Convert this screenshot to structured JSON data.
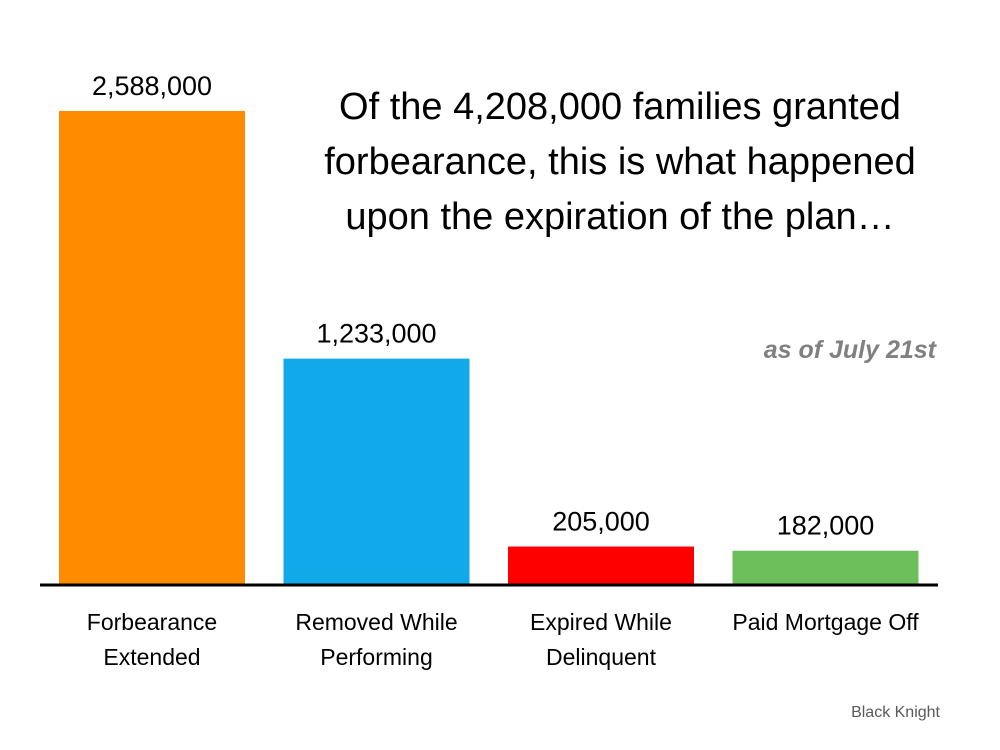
{
  "chart_data": {
    "type": "bar",
    "title_lines": [
      "Of the 4,208,000 families granted",
      "forbearance, this is what happened",
      "upon the expiration of the plan…"
    ],
    "subtitle": "as of July 21st",
    "source": "Black Knight",
    "categories": [
      [
        "Forbearance",
        "Extended"
      ],
      [
        "Removed While",
        "Performing"
      ],
      [
        "Expired While",
        "Delinquent"
      ],
      [
        "Paid Mortgage Off"
      ]
    ],
    "values": [
      2588000,
      1233000,
      205000,
      182000
    ],
    "value_labels": [
      "2,588,000",
      "1,233,000",
      "205,000",
      "182,000"
    ],
    "colors": [
      "#FF8C00",
      "#12A9EA",
      "#FF0000",
      "#6DBF5B"
    ],
    "ylim": [
      0,
      2588000
    ],
    "grid": false,
    "legend": "none"
  }
}
